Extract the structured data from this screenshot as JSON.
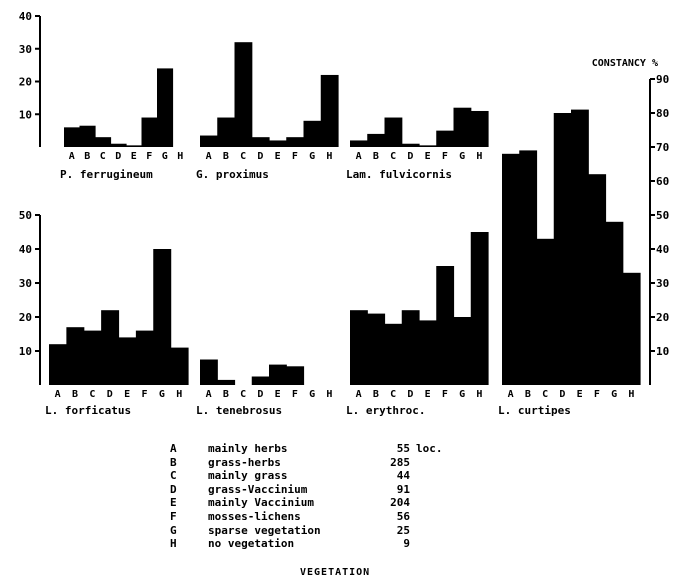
{
  "chart_data": {
    "type": "bar",
    "categories": [
      "A",
      "B",
      "C",
      "D",
      "E",
      "F",
      "G",
      "H"
    ],
    "right_axis_title": "CONSTANCY  %",
    "panels": [
      {
        "name": "P. ferrugineum",
        "ylim": [
          0,
          40
        ],
        "yticks": [
          10,
          20,
          30,
          40
        ],
        "values": [
          6,
          6.5,
          3,
          1,
          0.5,
          9,
          24,
          0
        ]
      },
      {
        "name": "G. proximus",
        "ylim": [
          0,
          40
        ],
        "values": [
          3.5,
          9,
          32,
          3,
          2,
          3,
          8,
          22
        ]
      },
      {
        "name": "Lam. fulvicornis",
        "ylim": [
          0,
          40
        ],
        "values": [
          2,
          4,
          9,
          1,
          0.5,
          5,
          12,
          11
        ]
      },
      {
        "name": "L. forficatus",
        "ylim": [
          0,
          50
        ],
        "yticks": [
          10,
          20,
          30,
          40,
          50
        ],
        "values": [
          12,
          17,
          16,
          22,
          14,
          16,
          40,
          11
        ]
      },
      {
        "name": "L. tenebrosus",
        "ylim": [
          0,
          50
        ],
        "values": [
          7.5,
          1.5,
          0,
          2.5,
          6,
          5.5,
          0,
          0
        ]
      },
      {
        "name": "L. erythroc.",
        "ylim": [
          0,
          50
        ],
        "values": [
          22,
          21,
          18,
          22,
          19,
          35,
          20,
          45
        ]
      },
      {
        "name": "L. curtipes",
        "ylim": [
          0,
          90
        ],
        "yticks": [
          10,
          20,
          30,
          40,
          50,
          60,
          70,
          80,
          90
        ],
        "values": [
          68,
          69,
          43,
          80,
          81,
          62,
          48,
          33
        ]
      }
    ],
    "legend": [
      {
        "code": "A",
        "label": "mainly herbs",
        "count": "55",
        "unit": "loc."
      },
      {
        "code": "B",
        "label": "grass-herbs",
        "count": "285"
      },
      {
        "code": "C",
        "label": "mainly grass",
        "count": "44"
      },
      {
        "code": "D",
        "label": "grass-Vaccinium",
        "count": "91"
      },
      {
        "code": "E",
        "label": "mainly Vaccinium",
        "count": "204"
      },
      {
        "code": "F",
        "label": "mosses-lichens",
        "count": "56"
      },
      {
        "code": "G",
        "label": "sparse vegetation",
        "count": "25"
      },
      {
        "code": "H",
        "label": "no vegetation",
        "count": "9"
      }
    ],
    "xlabel": "VEGETATION"
  }
}
